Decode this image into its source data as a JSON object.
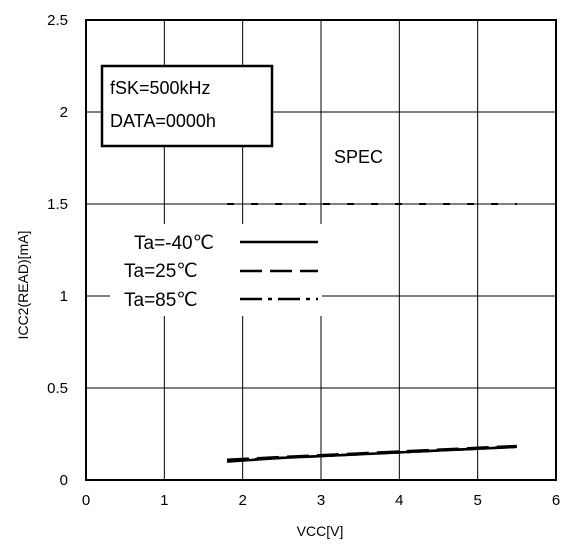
{
  "chart_data": {
    "type": "line",
    "title": "",
    "xlabel": "VCC[V]",
    "ylabel": "ICC2(READ)[mA]",
    "xlim": [
      0,
      6
    ],
    "ylim": [
      0,
      2.5
    ],
    "x_ticks": [
      "0",
      "1",
      "2",
      "3",
      "4",
      "5",
      "6"
    ],
    "y_ticks": [
      "0",
      "0.5",
      "1",
      "1.5",
      "2",
      "2.5"
    ],
    "grid": true,
    "legend_placement": "left-middle",
    "conditions": [
      "fSK=500kHz",
      "DATA=0000h"
    ],
    "spec": {
      "label": "SPEC",
      "y": 1.5,
      "x_range": [
        1.8,
        5.5
      ]
    },
    "series": [
      {
        "name": "Ta=-40℃",
        "style": "solid",
        "x": [
          1.8,
          2.5,
          3.0,
          3.5,
          4.0,
          4.5,
          5.0,
          5.5
        ],
        "y": [
          0.1,
          0.12,
          0.13,
          0.14,
          0.15,
          0.16,
          0.17,
          0.18
        ]
      },
      {
        "name": "Ta=25℃",
        "style": "dashed",
        "x": [
          1.8,
          2.5,
          3.0,
          3.5,
          4.0,
          4.5,
          5.0,
          5.5
        ],
        "y": [
          0.11,
          0.125,
          0.135,
          0.145,
          0.155,
          0.165,
          0.175,
          0.185
        ]
      },
      {
        "name": "Ta=85℃",
        "style": "dashdot",
        "x": [
          1.8,
          2.5,
          3.0,
          3.5,
          4.0,
          4.5,
          5.0,
          5.5
        ],
        "y": [
          0.105,
          0.12,
          0.13,
          0.14,
          0.15,
          0.16,
          0.17,
          0.18
        ]
      }
    ]
  }
}
